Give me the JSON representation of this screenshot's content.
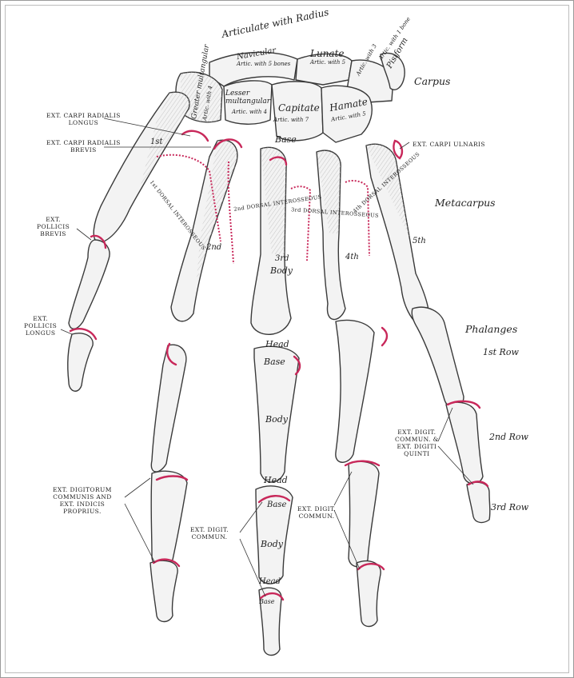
{
  "colors": {
    "background": "#ffffff",
    "bone_fill": "#f2f2f2",
    "bone_outline": "#3a3a3a",
    "attachment": "#c8285a",
    "frame": "#9a9a9a"
  },
  "carpus": {
    "articulate_with_radius": "Articulate with Radius",
    "navicular": "Navicular",
    "lunate": "Lunate",
    "artic_5_bones": "Artic. with 5 bones",
    "artic_with_5": "Artic. with 5",
    "triquetrum_artic_3": "Artic. with 3",
    "pisiform": "Pisiform",
    "artic_with_1_bone": "Artic. with 1 bone",
    "greater_multangular": "Greater multangular",
    "greater_multangular_artic": "Artic. with 4",
    "lesser_multangular": "Lesser multangular",
    "lesser_multangular_artic": "Artic. with 4",
    "capitate": "Capitate",
    "capitate_artic": "Artic. with 7",
    "hamate": "Hamate",
    "hamate_artic": "Artic. with 5",
    "region_label": "Carpus"
  },
  "metacarpus": {
    "region_label": "Metacarpus",
    "first": "1st",
    "second": "2nd",
    "third": "3rd",
    "fourth": "4th",
    "fifth": "5th",
    "base": "Base",
    "body": "Body",
    "head": "Head",
    "dorsal_interosseous_1": "1st DORSAL INTEROSSEOUS",
    "dorsal_interosseous_2": "2nd DORSAL INTEROSSEOUS",
    "dorsal_interosseous_3": "3rd DORSAL INTEROSSEOUS",
    "dorsal_interosseous_4": "4th DORSAL INTEROSSEOUS"
  },
  "phalanges": {
    "region_label": "Phalanges",
    "row1": "1st Row",
    "row2": "2nd Row",
    "row3": "3rd Row",
    "base": "Base",
    "body": "Body",
    "head": "Head",
    "head2": "Head",
    "base2": "Base",
    "body2": "Body",
    "head3": "Head",
    "base3": "Base"
  },
  "muscles": {
    "ext_carpi_radialis_longus": "EXT. CARPI RADIALIS\nLONGUS",
    "ext_carpi_radialis_brevis": "EXT. CARPI RADIALIS\nBREVIS",
    "ext_carpi_ulnaris": "EXT. CARPI ULNARIS",
    "ext_pollicis_brevis": "EXT.\nPOLLICIS\nBREVIS",
    "ext_pollicis_longus": "EXT.\nPOLLICIS\nLONGUS",
    "ext_digitorum_communis": "EXT. DIGITORUM\nCOMMUNIS AND\nEXT. INDICIS\nPROPRIUS.",
    "ext_digit_commun_middle": "EXT. DIGIT.\nCOMMUN.",
    "ext_digit_commun_ring": "EXT. DIGIT.\nCOMMUN.",
    "ext_digit_commun_quinti": "EXT. DIGIT.\nCOMMUN. &\nEXT. DIGITI\nQUINTI"
  }
}
